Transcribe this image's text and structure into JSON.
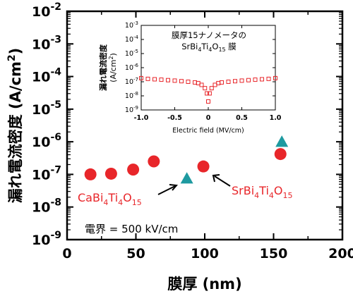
{
  "chart_data": [
    {
      "type": "scatter",
      "xlabel": "膜厚 (nm)",
      "ylabel": "漏れ電流密度 (A/cm2)",
      "xlim": [
        0,
        200
      ],
      "ylim": [
        1e-09,
        0.01
      ],
      "y_scale": "log",
      "x_ticks": [
        "0",
        "50",
        "100",
        "150",
        "200"
      ],
      "y_ticks": [
        {
          "base": "10",
          "exp": "-9"
        },
        {
          "base": "10",
          "exp": "-8"
        },
        {
          "base": "10",
          "exp": "-7"
        },
        {
          "base": "10",
          "exp": "-6"
        },
        {
          "base": "10",
          "exp": "-5"
        },
        {
          "base": "10",
          "exp": "-4"
        },
        {
          "base": "10",
          "exp": "-3"
        },
        {
          "base": "10",
          "exp": "-2"
        }
      ],
      "series": [
        {
          "name": "CaBi4Ti4O15",
          "marker": "triangle",
          "color": "#1e9aa0",
          "x": [
            87,
            156
          ],
          "y": [
            7.5e-08,
            1e-06
          ]
        },
        {
          "marker": "circle",
          "color": "#e8262a",
          "x": [
            17,
            32,
            48,
            63,
            99,
            155
          ],
          "y": [
            1e-07,
            1.05e-07,
            1.4e-07,
            2.5e-07,
            1.75e-07,
            4.2e-07
          ]
        }
      ],
      "annotations": {
        "ca_label": {
          "base": "CaBi",
          "s1": "4",
          "mid": "Ti",
          "s2": "4",
          "o": "O",
          "s3": "15"
        },
        "sr_label": {
          "base": "SrBi",
          "s1": "4",
          "mid": "Ti",
          "s2": "4",
          "o": "O",
          "s3": "15"
        },
        "condition": "電界 = 500 kV/cm"
      }
    },
    {
      "type": "line",
      "xlabel": "Electric field (MV/cm)",
      "ylabel": "漏れ電流密度 (A/cm2)",
      "title_line1": "膜厚15ナノメータの",
      "title_line2": {
        "base": "SrBi",
        "s1": "4",
        "mid": "Ti",
        "s2": "4",
        "o": "O",
        "s3": "15",
        "tail": " 膜"
      },
      "xlim": [
        -1.0,
        1.0
      ],
      "ylim": [
        1e-09,
        0.001
      ],
      "y_scale": "log",
      "x_ticks": [
        "-1.0",
        "-0.5",
        "0",
        "0.5",
        "1.0"
      ],
      "y_ticks": [
        {
          "base": "10",
          "exp": "-9"
        },
        {
          "base": "10",
          "exp": "-8"
        },
        {
          "base": "10",
          "exp": "-7"
        },
        {
          "base": "10",
          "exp": "-6"
        },
        {
          "base": "10",
          "exp": "-5"
        },
        {
          "base": "10",
          "exp": "-4"
        },
        {
          "base": "10",
          "exp": "-3"
        }
      ],
      "marker": "open-square",
      "color": "#e8262a",
      "series": [
        {
          "x": [
            -1.0,
            -0.9,
            -0.8,
            -0.7,
            -0.6,
            -0.5,
            -0.4,
            -0.3,
            -0.2,
            -0.15,
            -0.1,
            -0.05,
            -0.02,
            0.0,
            0.02,
            0.05,
            0.1,
            0.15,
            0.2,
            0.3,
            0.4,
            0.5,
            0.6,
            0.7,
            0.8,
            0.9,
            1.0
          ],
          "y": [
            1.8e-07,
            1.6e-07,
            1.5e-07,
            1.4e-07,
            1.3e-07,
            1.2e-07,
            1.1e-07,
            1e-07,
            9e-08,
            8e-08,
            6e-08,
            3.5e-08,
            1.5e-08,
            4e-09,
            1.5e-08,
            3.5e-08,
            6e-08,
            8e-08,
            9e-08,
            1e-07,
            1.1e-07,
            1.2e-07,
            1.3e-07,
            1.4e-07,
            1.5e-07,
            1.6e-07,
            1.8e-07
          ]
        }
      ]
    }
  ]
}
